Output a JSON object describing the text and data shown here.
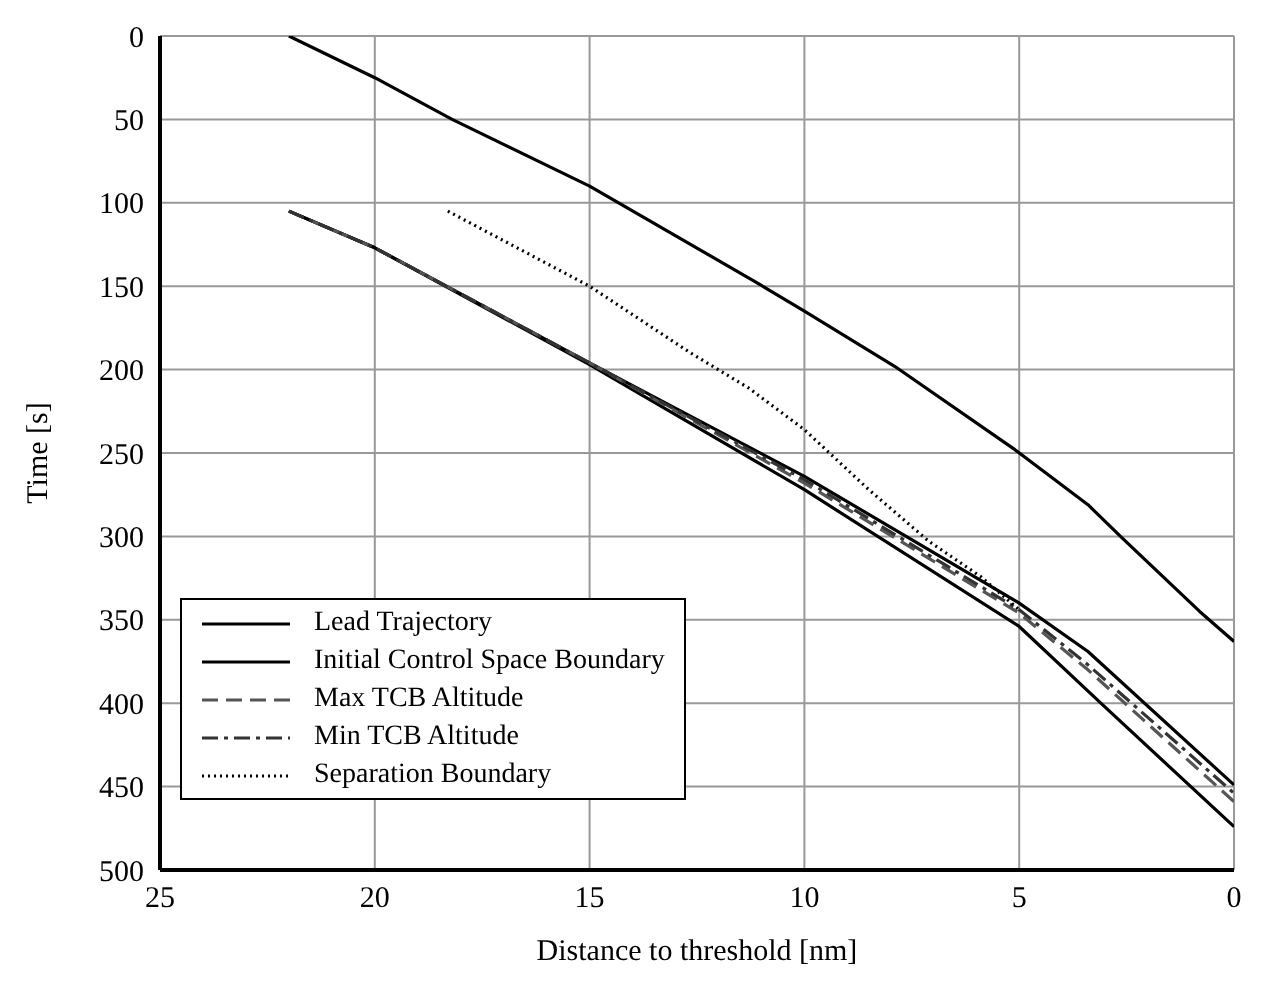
{
  "chart_data": {
    "type": "line",
    "xlabel": "Distance to threshold [nm]",
    "ylabel": "Time [s]",
    "xlim": [
      25,
      0
    ],
    "xticks": [
      25,
      20,
      15,
      10,
      5,
      0
    ],
    "ylim": [
      500,
      0
    ],
    "yticks": [
      0,
      50,
      100,
      150,
      200,
      250,
      300,
      350,
      400,
      450,
      500
    ],
    "grid": true,
    "legend": "bottom left",
    "marker": "none",
    "series": [
      {
        "name": "Lead Trajectory",
        "color": "#000000",
        "line_style": "solid",
        "x": [
          22,
          20,
          18.2,
          15,
          11.1,
          10,
          7.9,
          5.1,
          3.4,
          2.6,
          0.8,
          0
        ],
        "values": [
          0,
          25,
          50,
          90,
          148,
          165,
          198,
          248,
          281,
          301,
          345,
          363
        ]
      },
      {
        "name": "Initial Control Space Boundary",
        "color": "#000000",
        "line_style": "solid",
        "x": [
          22,
          20,
          15,
          10,
          5,
          3.4,
          0
        ],
        "values": [
          105,
          127,
          196,
          264,
          340,
          369,
          449
        ]
      },
      {
        "color": "#000000",
        "line_style": "solid",
        "x": [
          22,
          20,
          15,
          10,
          5,
          3.1,
          0
        ],
        "values": [
          105,
          127,
          197,
          272,
          354,
          400,
          474
        ]
      },
      {
        "name": "Max TCB Altitude",
        "color": "#555555",
        "line_style": "dashed",
        "x": [
          22,
          20,
          15,
          10,
          5,
          3.4,
          0
        ],
        "values": [
          105,
          127,
          196,
          268,
          346,
          380,
          459
        ]
      },
      {
        "name": "Min TCB Altitude",
        "color": "#333333",
        "line_style": "dashdot",
        "x": [
          22,
          20,
          15,
          10,
          5,
          3.4,
          0
        ],
        "values": [
          105,
          127,
          196,
          266,
          344,
          377,
          454
        ]
      },
      {
        "name": "Separation Boundary",
        "color": "#000000",
        "line_style": "dotted",
        "x": [
          18.3,
          15,
          12.65,
          11.3,
          10,
          8.5,
          7.1,
          5.9,
          5
        ],
        "values": [
          105,
          150,
          190,
          211,
          236,
          272,
          303,
          324,
          344
        ]
      }
    ]
  }
}
